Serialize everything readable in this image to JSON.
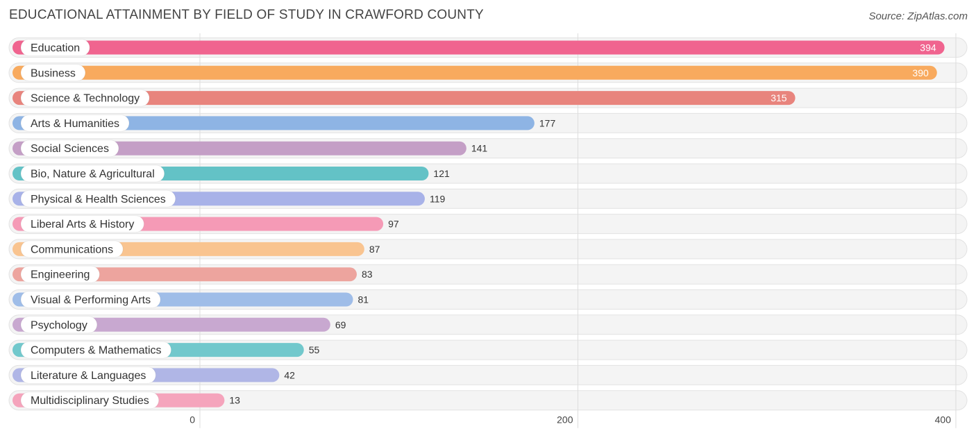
{
  "chart_data": {
    "type": "bar",
    "orientation": "horizontal",
    "title": "EDUCATIONAL ATTAINMENT BY FIELD OF STUDY IN CRAWFORD COUNTY",
    "source": "Source: ZipAtlas.com",
    "xlim": [
      0,
      400
    ],
    "ticks": [
      0,
      200,
      400
    ],
    "grid": true,
    "categories": [
      "Education",
      "Business",
      "Science & Technology",
      "Arts & Humanities",
      "Social Sciences",
      "Bio, Nature & Agricultural",
      "Physical & Health Sciences",
      "Liberal Arts & History",
      "Communications",
      "Engineering",
      "Visual & Performing Arts",
      "Psychology",
      "Computers & Mathematics",
      "Literature & Languages",
      "Multidisciplinary Studies"
    ],
    "values": [
      394,
      390,
      315,
      177,
      141,
      121,
      119,
      97,
      87,
      83,
      81,
      69,
      55,
      42,
      13
    ],
    "colors": [
      "#f0648f",
      "#f8aa5e",
      "#e8847d",
      "#8eb4e4",
      "#c49fc6",
      "#63c2c6",
      "#a8b2e8",
      "#f59ab6",
      "#f9c490",
      "#eda49e",
      "#9fbde8",
      "#c8a8d0",
      "#72c8cc",
      "#b0b6e6",
      "#f5a4bc"
    ]
  }
}
